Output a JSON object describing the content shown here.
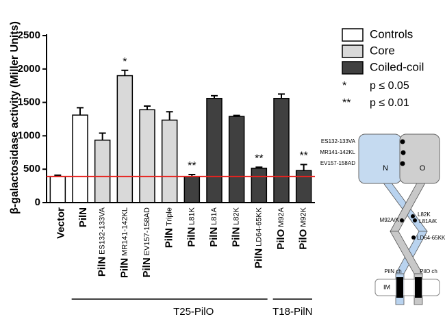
{
  "chart_data": {
    "type": "bar",
    "ylabel": "β-galactosidase activity (Miller Units)",
    "categories": [
      {
        "main": "Vector"
      },
      {
        "main": "PilN"
      },
      {
        "main": "PilN",
        "sub": "ES132-133VA"
      },
      {
        "main": "PilN",
        "sub": "MR141-142KL"
      },
      {
        "main": "PilN",
        "sub": "EV157-158AD"
      },
      {
        "main": "PilN",
        "sub": "Triple"
      },
      {
        "main": "PilN",
        "sub": "L81K"
      },
      {
        "main": "PilN",
        "sub": "L81A"
      },
      {
        "main": "PilN",
        "sub": "L82K"
      },
      {
        "main": "PilN",
        "sub": "LD64-65KK"
      },
      {
        "main": "PilO",
        "sub": "M92A"
      },
      {
        "main": "PilO",
        "sub": "M92K"
      }
    ],
    "values": [
      390,
      1310,
      935,
      1900,
      1390,
      1235,
      390,
      1560,
      1290,
      515,
      1560,
      480
    ],
    "errors": [
      20,
      110,
      105,
      80,
      55,
      125,
      30,
      40,
      15,
      15,
      65,
      90
    ],
    "bar_group": [
      0,
      0,
      1,
      1,
      1,
      1,
      2,
      2,
      2,
      2,
      2,
      2
    ],
    "significance": [
      null,
      null,
      null,
      "*",
      null,
      null,
      "**",
      null,
      null,
      "**",
      null,
      "**"
    ],
    "legend": [
      {
        "name": "Controls",
        "color": "#ffffff"
      },
      {
        "name": "Core",
        "color": "#d9d9d9"
      },
      {
        "name": "Coiled-coil",
        "color": "#404040"
      }
    ],
    "significance_legend": [
      {
        "symbol": "*",
        "label": "p ≤ 0.05"
      },
      {
        "symbol": "**",
        "label": "p ≤ 0.01"
      }
    ],
    "reference_line": {
      "value": 390,
      "color": "#e8231f"
    },
    "x_groups": [
      {
        "label": "T25-PilO",
        "from": 1,
        "to": 9
      },
      {
        "label": "T18-PilN",
        "from": 10,
        "to": 11
      }
    ],
    "ylim": [
      0,
      2500
    ],
    "yticks": [
      0,
      500,
      1000,
      1500,
      2000,
      2500
    ]
  },
  "diagram": {
    "domain_n": "N",
    "domain_o": "O",
    "core_mutations": [
      "ES132-133VA",
      "MR141-142KL",
      "EV157-158AD"
    ],
    "coil_mutations_right": [
      "L82K",
      "L81A/K"
    ],
    "coil_mutation_left": "M92A/K",
    "coil_mutation_lower": "LD64-65KK",
    "pilN_label": "PilN ch",
    "pilO_label": "PilO ch",
    "membrane": "IM"
  }
}
